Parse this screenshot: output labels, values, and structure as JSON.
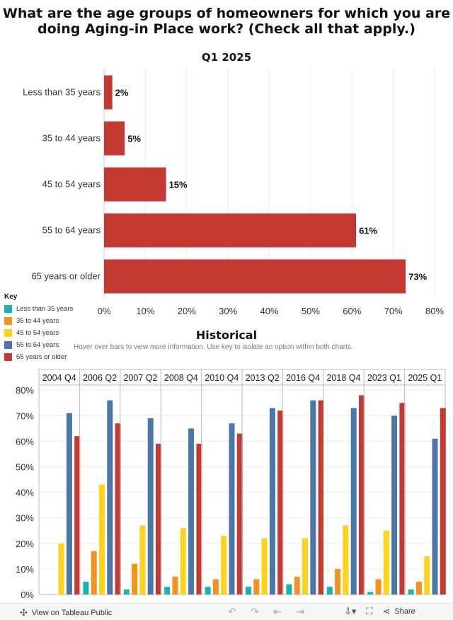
{
  "page": {
    "title": "What are the age groups of homeowners for which you are doing Aging-in Place work? (Check all that apply.)",
    "subtitle": "Q1 2025"
  },
  "key": {
    "title": "Key",
    "items": [
      {
        "label": "Less than 35 years",
        "color": "#17b2b2"
      },
      {
        "label": "35 to 44 years",
        "color": "#f5921e"
      },
      {
        "label": "45 to 54 years",
        "color": "#ffd21c"
      },
      {
        "label": "55 to 64 years",
        "color": "#4b77a8"
      },
      {
        "label": "65 years or older",
        "color": "#c43a33"
      }
    ]
  },
  "historical": {
    "title": "Historical",
    "note": "Hover over bars to view more information. Use key to isolate an option within both charts."
  },
  "chart_data": [
    {
      "type": "bar",
      "orientation": "horizontal",
      "categories": [
        "Less than 35 years",
        "35 to 44 years",
        "45 to 54 years",
        "55 to 64 years",
        "65 years or older"
      ],
      "values": [
        2,
        5,
        15,
        61,
        73
      ],
      "value_labels": [
        "2%",
        "5%",
        "15%",
        "61%",
        "73%"
      ],
      "xlim": [
        0,
        80
      ],
      "xticks": [
        "0%",
        "10%",
        "20%",
        "30%",
        "40%",
        "50%",
        "60%",
        "70%",
        "80%"
      ],
      "color": "#c43a33",
      "grid": true
    },
    {
      "type": "bar",
      "orientation": "vertical",
      "panels": [
        "2004 Q4",
        "2006 Q2",
        "2007 Q2",
        "2008 Q4",
        "2010 Q4",
        "2013 Q2",
        "2016 Q4",
        "2018 Q4",
        "2023 Q1",
        "2025 Q1"
      ],
      "series": [
        {
          "name": "Less than 35 years",
          "color": "#17b2b2",
          "values": [
            0,
            5,
            2,
            3,
            3,
            3,
            4,
            3,
            1,
            2
          ]
        },
        {
          "name": "35 to 44 years",
          "color": "#f5921e",
          "values": [
            0,
            17,
            12,
            7,
            6,
            6,
            7,
            10,
            6,
            5
          ]
        },
        {
          "name": "45 to 54 years",
          "color": "#ffd21c",
          "values": [
            20,
            43,
            27,
            26,
            23,
            22,
            22,
            27,
            25,
            15
          ]
        },
        {
          "name": "55 to 64 years",
          "color": "#4b77a8",
          "values": [
            71,
            76,
            69,
            65,
            67,
            73,
            76,
            73,
            70,
            61
          ]
        },
        {
          "name": "65 years or older",
          "color": "#c43a33",
          "values": [
            62,
            67,
            59,
            59,
            63,
            72,
            76,
            78,
            75,
            73
          ]
        }
      ],
      "ylim": [
        0,
        82
      ],
      "yticks": [
        "0%",
        "10%",
        "20%",
        "30%",
        "40%",
        "50%",
        "60%",
        "70%",
        "80%"
      ],
      "grid": true
    }
  ],
  "toolbar": {
    "view_label": "View on Tableau Public",
    "view_icon": "tableau-icon",
    "share_label": "Share",
    "icons": [
      "undo-icon",
      "redo-icon",
      "revert-icon",
      "forward-icon",
      "download-icon",
      "fullscreen-icon",
      "share-icon"
    ]
  }
}
